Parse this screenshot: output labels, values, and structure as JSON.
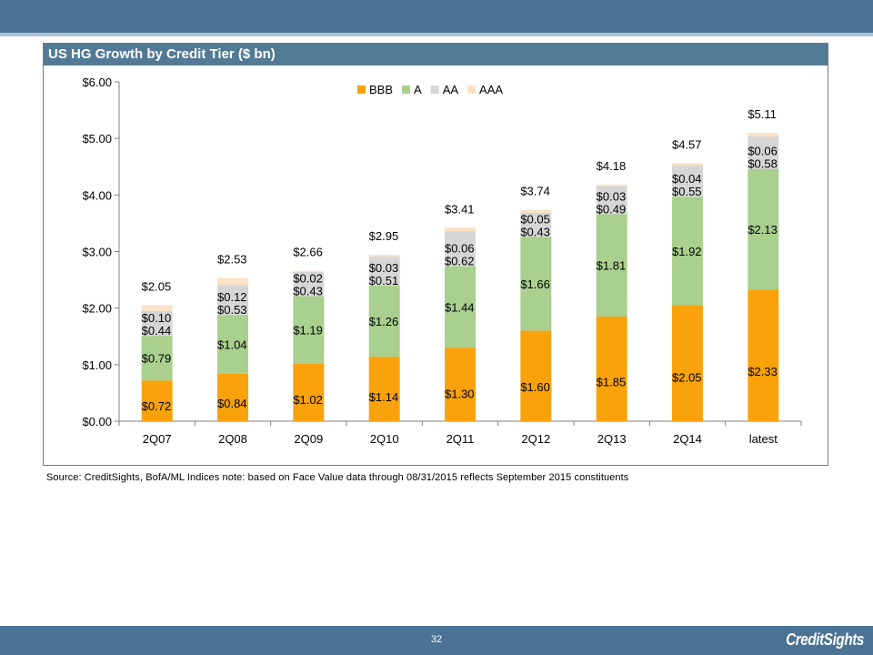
{
  "panel": {
    "title": "US HG Growth by Credit Tier ($ bn)"
  },
  "source": "Source: CreditSights, BofA/ML Indices   note: based on Face Value   data through 08/31/2015   reflects September 2015 constituents",
  "footer": {
    "page_number": "32",
    "brand": "CreditSights"
  },
  "colors": {
    "BBB": "#f9a20b",
    "A": "#a9d08e",
    "AA": "#d6d6d6",
    "AAA": "#fbe1c6",
    "header": "#4a7394"
  },
  "chart_data": {
    "type": "bar",
    "stacked": true,
    "title": "US HG Growth by Credit Tier ($ bn)",
    "categories": [
      "2Q07",
      "2Q08",
      "2Q09",
      "2Q10",
      "2Q11",
      "2Q12",
      "2Q13",
      "2Q14",
      "latest"
    ],
    "series": [
      {
        "name": "BBB",
        "values": [
          0.72,
          0.84,
          1.02,
          1.14,
          1.3,
          1.6,
          1.85,
          2.05,
          2.33
        ],
        "labels": [
          "$0.72",
          "$0.84",
          "$1.02",
          "$1.14",
          "$1.30",
          "$1.60",
          "$1.85",
          "$2.05",
          "$2.33"
        ]
      },
      {
        "name": "A",
        "values": [
          0.79,
          1.04,
          1.19,
          1.26,
          1.44,
          1.66,
          1.81,
          1.92,
          2.13
        ],
        "labels": [
          "$0.79",
          "$1.04",
          "$1.19",
          "$1.26",
          "$1.44",
          "$1.66",
          "$1.81",
          "$1.92",
          "$2.13"
        ]
      },
      {
        "name": "AA",
        "values": [
          0.44,
          0.53,
          0.43,
          0.51,
          0.62,
          0.43,
          0.49,
          0.55,
          0.58
        ],
        "labels": [
          "$0.44",
          "$0.53",
          "$0.43",
          "$0.51",
          "$0.62",
          "$0.43",
          "$0.49",
          "$0.55",
          "$0.58"
        ]
      },
      {
        "name": "AAA",
        "values": [
          0.1,
          0.12,
          0.02,
          0.03,
          0.06,
          0.05,
          0.03,
          0.04,
          0.06
        ],
        "labels": [
          "$0.10",
          "$0.12",
          "$0.02",
          "$0.03",
          "$0.06",
          "$0.05",
          "$0.03",
          "$0.04",
          "$0.06"
        ]
      }
    ],
    "totals": [
      "$2.05",
      "$2.53",
      "$2.66",
      "$2.95",
      "$3.41",
      "$3.74",
      "$4.18",
      "$4.57",
      "$5.11"
    ],
    "ylim": [
      0,
      6
    ],
    "yticks": [
      0,
      1,
      2,
      3,
      4,
      5,
      6
    ],
    "ytick_labels": [
      "$0.00",
      "$1.00",
      "$2.00",
      "$3.00",
      "$4.00",
      "$5.00",
      "$6.00"
    ],
    "legend_position": "top",
    "grid": false
  }
}
